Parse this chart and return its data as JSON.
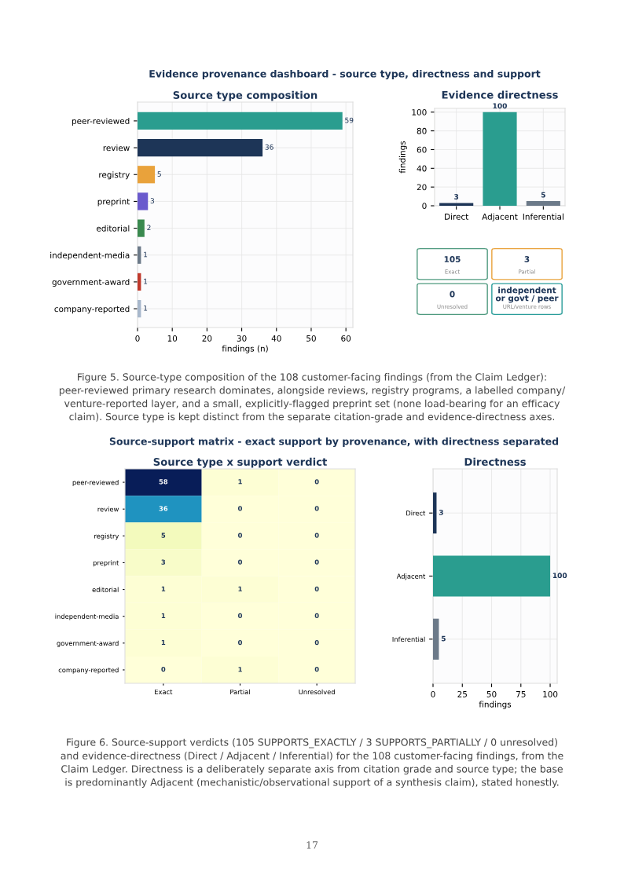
{
  "chart_data": [
    {
      "type": "bar",
      "orientation": "horizontal",
      "title": "Source type composition",
      "xlabel": "findings (n)",
      "categories": [
        "peer-reviewed",
        "review",
        "registry",
        "preprint",
        "editorial",
        "independent-media",
        "government-award",
        "company-reported"
      ],
      "values": [
        59,
        36,
        5,
        3,
        2,
        1,
        1,
        1
      ],
      "colors": [
        "#2a9d8f",
        "#1d3557",
        "#e9a23b",
        "#6a5acd",
        "#3a8a4f",
        "#6c7a89",
        "#c0392b",
        "#a8b8cc"
      ],
      "xlim": [
        0,
        62
      ],
      "xticks": [
        0,
        10,
        20,
        30,
        40,
        50,
        60
      ],
      "grid": true,
      "data_labels": true,
      "annotations": [
        "Evidence provenance dashboard - source type, directness and support",
        "Figure 5. Source-type composition of the 108 customer-facing findings (from the Claim Ledger): peer-reviewed primary research dominates, alongside reviews, registry programs, a labelled company/ venture-reported layer, and a small, explicitly-flagged preprint set (none load-bearing for an efficacy claim). Source type is kept distinct from the separate citation-grade and evidence-directness axes."
      ]
    },
    {
      "type": "bar",
      "title": "Evidence directness",
      "ylabel": "findings",
      "categories": [
        "Direct",
        "Adjacent",
        "Inferential"
      ],
      "values": [
        3,
        100,
        5
      ],
      "colors": [
        "#1d3557",
        "#2a9d8f",
        "#6c7a89"
      ],
      "ylim": [
        0,
        104
      ],
      "yticks": [
        0,
        20,
        40,
        60,
        80,
        100
      ],
      "grid": true,
      "data_labels": true
    },
    {
      "type": "other",
      "annotations": [
        "105",
        "Exact",
        "3",
        "Partial",
        "0",
        "Unresolved",
        "independent\nor govt / peer",
        "URL/venture rows"
      ],
      "colors": [
        "#4f9a7f",
        "#e9a23b",
        "#4f9a7f",
        "#2a9d9a"
      ]
    },
    {
      "type": "heatmap",
      "title": "Source type x support verdict",
      "categories": [
        "Exact",
        "Partial",
        "Unresolved"
      ],
      "y_categories": [
        "peer-reviewed",
        "review",
        "registry",
        "preprint",
        "editorial",
        "independent-media",
        "government-award",
        "company-reported"
      ],
      "cells": [
        [
          58,
          1,
          0
        ],
        [
          36,
          0,
          0
        ],
        [
          5,
          0,
          0
        ],
        [
          3,
          0,
          0
        ],
        [
          1,
          1,
          0
        ],
        [
          1,
          0,
          0
        ],
        [
          1,
          0,
          0
        ],
        [
          0,
          1,
          0
        ]
      ],
      "data_labels": true,
      "annotations": [
        "Source-support matrix - exact support by provenance, with directness separated",
        "Figure 6. Source-support verdicts (105 SUPPORTS_EXACTLY / 3 SUPPORTS_PARTIALLY / 0 unresolved) and evidence-directness (Direct / Adjacent / Inferential) for the 108 customer-facing findings, from the Claim Ledger. Directness is a deliberately separate axis from citation grade and source type; the base is predominantly Adjacent (mechanistic/observational support of a synthesis claim), stated honestly.",
        "17"
      ]
    },
    {
      "type": "bar",
      "orientation": "horizontal",
      "title": "Directness",
      "xlabel": "findings",
      "categories": [
        "Direct",
        "Adjacent",
        "Inferential"
      ],
      "values": [
        3,
        100,
        5
      ],
      "colors": [
        "#1d3557",
        "#2a9d8f",
        "#6c7a89"
      ],
      "xlim": [
        0,
        106
      ],
      "xticks": [
        0,
        25,
        50,
        75,
        100
      ],
      "grid": true,
      "data_labels": true
    }
  ]
}
